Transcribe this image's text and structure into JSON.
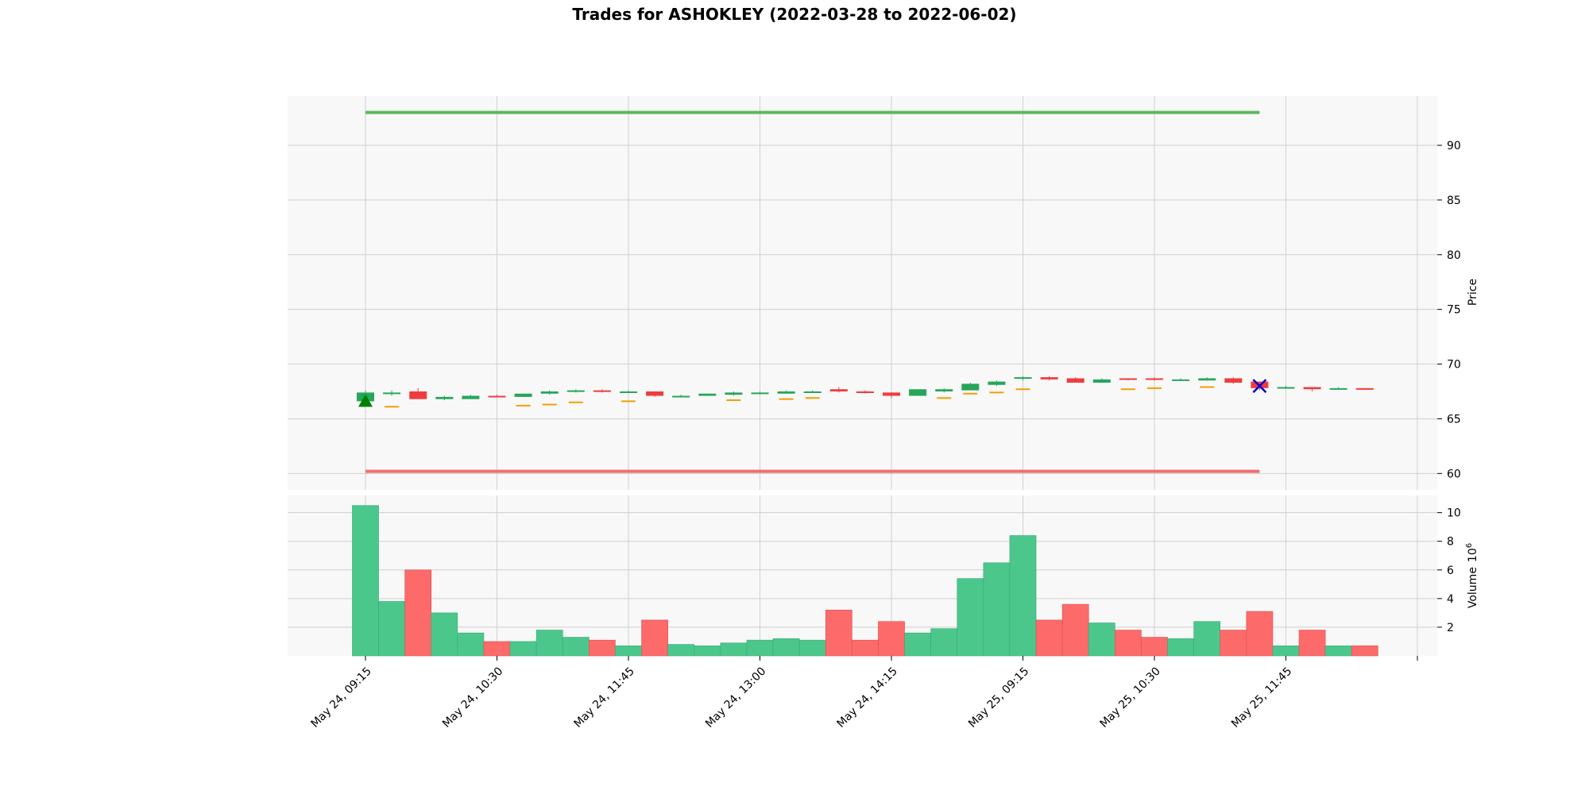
{
  "chart_data": {
    "type": "candlestick",
    "title": "Trades for ASHOKLEY (2022-03-28 to 2022-06-02)",
    "price_axis": {
      "label": "Price",
      "ylim": [
        58.5,
        94.5
      ],
      "ticks": [
        60,
        65,
        70,
        75,
        80,
        85,
        90
      ],
      "position": "right"
    },
    "volume_axis": {
      "label": "Volume",
      "exponent": "6",
      "ylim": [
        0,
        11.2
      ],
      "ticks": [
        2,
        4,
        6,
        8,
        10
      ],
      "position": "right"
    },
    "x_tick_labels": [
      "May 24, 09:15",
      "May 24, 10:30",
      "May 24, 11:45",
      "May 24, 13:00",
      "May 24, 14:15",
      "May 25, 09:15",
      "May 25, 10:30",
      "May 25, 11:45",
      ""
    ],
    "x_tick_positions": [
      0,
      5,
      10,
      15,
      20,
      25,
      30,
      35,
      40
    ],
    "grid": true,
    "colors": {
      "up": "#26a65b",
      "down": "#f03c3c",
      "vol_up": "#4cc78c",
      "vol_down": "#fd6a6a",
      "take_profit": "#5cb85c",
      "stop_loss": "#f07070",
      "marker_line": "#f0a000",
      "entry_marker": "#008000",
      "exit_marker": "#0000cc",
      "panel_bg": "#f8f8f8",
      "grid": "#d0d0d0"
    },
    "candles": [
      {
        "o": 66.6,
        "h": 67.6,
        "l": 66.4,
        "c": 67.4
      },
      {
        "o": 67.3,
        "h": 67.6,
        "l": 67.1,
        "c": 67.4
      },
      {
        "o": 67.5,
        "h": 67.8,
        "l": 66.8,
        "c": 66.8
      },
      {
        "o": 66.8,
        "h": 67.1,
        "l": 66.7,
        "c": 67.0
      },
      {
        "o": 66.8,
        "h": 67.2,
        "l": 66.8,
        "c": 67.1
      },
      {
        "o": 67.1,
        "h": 67.2,
        "l": 67.0,
        "c": 67.0
      },
      {
        "o": 67.0,
        "h": 67.3,
        "l": 67.0,
        "c": 67.3
      },
      {
        "o": 67.3,
        "h": 67.6,
        "l": 67.2,
        "c": 67.5
      },
      {
        "o": 67.5,
        "h": 67.7,
        "l": 67.4,
        "c": 67.6
      },
      {
        "o": 67.6,
        "h": 67.7,
        "l": 67.4,
        "c": 67.5
      },
      {
        "o": 67.5,
        "h": 67.6,
        "l": 67.4,
        "c": 67.5
      },
      {
        "o": 67.5,
        "h": 67.5,
        "l": 67.0,
        "c": 67.1
      },
      {
        "o": 67.1,
        "h": 67.2,
        "l": 67.0,
        "c": 67.1
      },
      {
        "o": 67.1,
        "h": 67.3,
        "l": 67.1,
        "c": 67.3
      },
      {
        "o": 67.2,
        "h": 67.5,
        "l": 67.1,
        "c": 67.4
      },
      {
        "o": 67.4,
        "h": 67.5,
        "l": 67.3,
        "c": 67.4
      },
      {
        "o": 67.3,
        "h": 67.6,
        "l": 67.3,
        "c": 67.5
      },
      {
        "o": 67.5,
        "h": 67.6,
        "l": 67.4,
        "c": 67.5
      },
      {
        "o": 67.7,
        "h": 67.9,
        "l": 67.4,
        "c": 67.5
      },
      {
        "o": 67.5,
        "h": 67.6,
        "l": 67.3,
        "c": 67.4
      },
      {
        "o": 67.4,
        "h": 67.4,
        "l": 66.9,
        "c": 67.1
      },
      {
        "o": 67.1,
        "h": 67.7,
        "l": 67.1,
        "c": 67.7
      },
      {
        "o": 67.5,
        "h": 67.8,
        "l": 67.4,
        "c": 67.7
      },
      {
        "o": 67.6,
        "h": 68.3,
        "l": 67.6,
        "c": 68.2
      },
      {
        "o": 68.1,
        "h": 68.5,
        "l": 68.0,
        "c": 68.4
      },
      {
        "o": 68.7,
        "h": 68.9,
        "l": 68.5,
        "c": 68.8
      },
      {
        "o": 68.8,
        "h": 68.9,
        "l": 68.5,
        "c": 68.6
      },
      {
        "o": 68.7,
        "h": 68.8,
        "l": 68.3,
        "c": 68.3
      },
      {
        "o": 68.3,
        "h": 68.7,
        "l": 68.3,
        "c": 68.6
      },
      {
        "o": 68.7,
        "h": 68.7,
        "l": 68.5,
        "c": 68.6
      },
      {
        "o": 68.7,
        "h": 68.8,
        "l": 68.5,
        "c": 68.6
      },
      {
        "o": 68.6,
        "h": 68.7,
        "l": 68.5,
        "c": 68.6
      },
      {
        "o": 68.5,
        "h": 68.8,
        "l": 68.5,
        "c": 68.7
      },
      {
        "o": 68.7,
        "h": 68.8,
        "l": 68.2,
        "c": 68.3
      },
      {
        "o": 68.4,
        "h": 68.4,
        "l": 67.6,
        "c": 67.8
      },
      {
        "o": 67.9,
        "h": 68.0,
        "l": 67.8,
        "c": 67.9
      },
      {
        "o": 67.9,
        "h": 67.9,
        "l": 67.5,
        "c": 67.7
      },
      {
        "o": 67.7,
        "h": 67.9,
        "l": 67.7,
        "c": 67.8
      },
      {
        "o": 67.8,
        "h": 67.8,
        "l": 67.7,
        "c": 67.7
      }
    ],
    "volume": [
      10.5,
      3.8,
      6.0,
      3.0,
      1.6,
      1.0,
      1.0,
      1.8,
      1.3,
      1.1,
      0.7,
      2.5,
      0.8,
      0.7,
      0.9,
      1.1,
      1.2,
      1.1,
      3.2,
      1.1,
      2.4,
      1.6,
      1.9,
      5.4,
      6.5,
      8.4,
      2.5,
      3.6,
      2.3,
      1.8,
      1.3,
      1.2,
      2.4,
      1.8,
      3.1,
      0.7,
      1.8,
      0.7,
      0.7
    ],
    "overlay_markers": [
      {
        "index": 1,
        "value": 66.1
      },
      {
        "index": 6,
        "value": 66.2
      },
      {
        "index": 7,
        "value": 66.3
      },
      {
        "index": 8,
        "value": 66.5
      },
      {
        "index": 10,
        "value": 66.6
      },
      {
        "index": 14,
        "value": 66.7
      },
      {
        "index": 16,
        "value": 66.8
      },
      {
        "index": 17,
        "value": 66.9
      },
      {
        "index": 22,
        "value": 66.9
      },
      {
        "index": 23,
        "value": 67.3
      },
      {
        "index": 24,
        "value": 67.4
      },
      {
        "index": 25,
        "value": 67.7
      },
      {
        "index": 29,
        "value": 67.7
      },
      {
        "index": 30,
        "value": 67.8
      },
      {
        "index": 32,
        "value": 67.9
      }
    ],
    "take_profit": {
      "value": 93.0,
      "from_index": 0,
      "to_index": 34
    },
    "stop_loss": {
      "value": 60.2,
      "from_index": 0,
      "to_index": 34
    },
    "entry": {
      "index": 0,
      "value": 66.6
    },
    "exit": {
      "index": 34,
      "value": 68.0
    }
  }
}
